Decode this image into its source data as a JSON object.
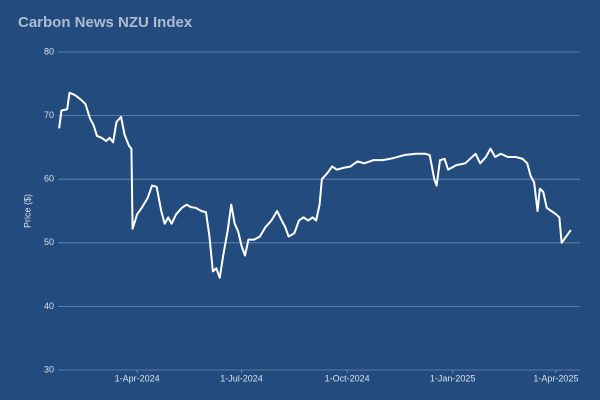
{
  "chart_data": {
    "type": "line",
    "title": "Carbon News NZU Index",
    "y_label": "Price ($)",
    "x": [
      "2024-01-24",
      "2024-01-26",
      "2024-01-31",
      "2024-02-02",
      "2024-02-07",
      "2024-02-12",
      "2024-02-16",
      "2024-02-20",
      "2024-02-23",
      "2024-02-26",
      "2024-03-01",
      "2024-03-05",
      "2024-03-08",
      "2024-03-11",
      "2024-03-14",
      "2024-03-18",
      "2024-03-21",
      "2024-03-25",
      "2024-03-27",
      "2024-03-28",
      "2024-04-01",
      "2024-04-05",
      "2024-04-10",
      "2024-04-14",
      "2024-04-18",
      "2024-04-22",
      "2024-04-25",
      "2024-04-28",
      "2024-05-01",
      "2024-05-05",
      "2024-05-10",
      "2024-05-14",
      "2024-05-18",
      "2024-05-22",
      "2024-05-27",
      "2024-05-31",
      "2024-06-03",
      "2024-06-06",
      "2024-06-09",
      "2024-06-12",
      "2024-06-15",
      "2024-06-19",
      "2024-06-22",
      "2024-06-25",
      "2024-06-28",
      "2024-07-01",
      "2024-07-04",
      "2024-07-07",
      "2024-07-12",
      "2024-07-17",
      "2024-07-22",
      "2024-07-27",
      "2024-08-01",
      "2024-08-05",
      "2024-08-08",
      "2024-08-11",
      "2024-08-16",
      "2024-08-20",
      "2024-08-24",
      "2024-08-28",
      "2024-09-01",
      "2024-09-04",
      "2024-09-07",
      "2024-09-09",
      "2024-09-14",
      "2024-09-18",
      "2024-09-22",
      "2024-09-28",
      "2024-10-04",
      "2024-10-10",
      "2024-10-16",
      "2024-10-24",
      "2024-11-01",
      "2024-11-10",
      "2024-11-20",
      "2024-11-30",
      "2024-12-08",
      "2024-12-12",
      "2024-12-16",
      "2024-12-18",
      "2024-12-21",
      "2024-12-25",
      "2024-12-28",
      "2025-01-04",
      "2025-01-12",
      "2025-01-18",
      "2025-01-21",
      "2025-01-25",
      "2025-01-30",
      "2025-02-03",
      "2025-02-07",
      "2025-02-12",
      "2025-02-18",
      "2025-02-25",
      "2025-03-03",
      "2025-03-07",
      "2025-03-10",
      "2025-03-13",
      "2025-03-16",
      "2025-03-18",
      "2025-03-21",
      "2025-03-24",
      "2025-03-28",
      "2025-04-01",
      "2025-04-04",
      "2025-04-06",
      "2025-04-10",
      "2025-04-14"
    ],
    "series": [
      {
        "name": "NZU",
        "color": "#ffffff",
        "values": [
          68.0,
          70.8,
          71.0,
          73.6,
          73.2,
          72.5,
          71.8,
          69.5,
          68.5,
          66.8,
          66.5,
          66.0,
          66.5,
          65.8,
          69.0,
          69.8,
          67.0,
          65.2,
          64.8,
          52.2,
          54.5,
          55.5,
          57.0,
          59.0,
          58.8,
          55.0,
          53.0,
          54.0,
          53.0,
          54.5,
          55.5,
          56.0,
          55.6,
          55.5,
          55.0,
          54.8,
          51.0,
          45.5,
          46.0,
          44.5,
          48.0,
          52.0,
          56.0,
          53.0,
          51.8,
          49.5,
          48.0,
          50.5,
          50.5,
          51.0,
          52.5,
          53.5,
          55.0,
          53.5,
          52.5,
          51.0,
          51.5,
          53.5,
          54.0,
          53.5,
          54.0,
          53.5,
          56.0,
          60.0,
          61.0,
          62.0,
          61.5,
          61.8,
          62.0,
          62.8,
          62.5,
          63.0,
          63.0,
          63.3,
          63.8,
          64.0,
          64.0,
          63.8,
          60.0,
          59.0,
          63.0,
          63.2,
          61.5,
          62.2,
          62.5,
          63.5,
          64.0,
          62.5,
          63.5,
          64.8,
          63.5,
          64.0,
          63.5,
          63.5,
          63.2,
          62.5,
          60.5,
          59.5,
          55.0,
          58.5,
          58.0,
          55.5,
          55.0,
          54.5,
          54.0,
          50.0,
          51.0,
          52.0
        ]
      }
    ],
    "xlim": [
      "2024-01-23",
      "2025-04-22"
    ],
    "xticks": [
      {
        "value": "2024-04-01",
        "label": "1-Apr-2024"
      },
      {
        "value": "2024-07-01",
        "label": "1-Jul-2024"
      },
      {
        "value": "2024-10-01",
        "label": "1-Oct-2024"
      },
      {
        "value": "2025-01-01",
        "label": "1-Jan-2025"
      },
      {
        "value": "2025-04-01",
        "label": "1-Apr-2025"
      }
    ],
    "ylim": [
      30,
      80
    ],
    "yticks": [
      30,
      40,
      50,
      60,
      70,
      80
    ],
    "grid": true
  }
}
